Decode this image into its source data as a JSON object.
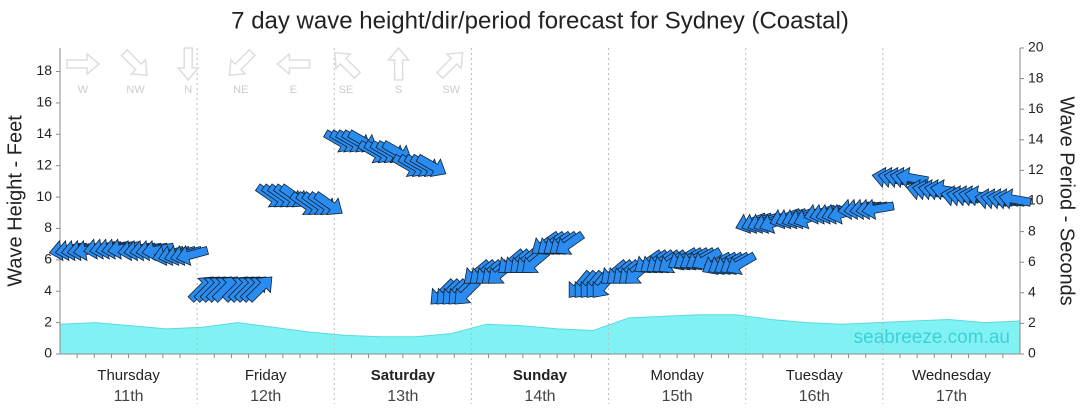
{
  "chart_data": {
    "type": "wave-forecast",
    "title": "7 day wave height/dir/period forecast for Sydney (Coastal)",
    "y_label": "Wave Height - Feet",
    "y2_label": "Wave Period - Seconds",
    "watermark": "seabreeze.com.au",
    "ylim": [
      0,
      19.5
    ],
    "yticks": [
      0,
      2,
      4,
      6,
      8,
      10,
      12,
      14,
      16,
      18
    ],
    "y2lim": [
      0,
      20
    ],
    "y2ticks": [
      0,
      2,
      4,
      6,
      8,
      10,
      12,
      14,
      16,
      18,
      20
    ],
    "days": [
      {
        "name": "Thursday",
        "date": "11th",
        "bold": false
      },
      {
        "name": "Friday",
        "date": "12th",
        "bold": false
      },
      {
        "name": "Saturday",
        "date": "13th",
        "bold": true
      },
      {
        "name": "Sunday",
        "date": "14th",
        "bold": true
      },
      {
        "name": "Monday",
        "date": "15th",
        "bold": false
      },
      {
        "name": "Tuesday",
        "date": "16th",
        "bold": false
      },
      {
        "name": "Wednesday",
        "date": "17th",
        "bold": false
      }
    ],
    "compass_legend": [
      "W",
      "NW",
      "N",
      "NE",
      "E",
      "SE",
      "S",
      "SW"
    ],
    "height": {
      "color": "#80f2f4",
      "values": [
        1.9,
        2.0,
        1.8,
        1.6,
        1.7,
        2.0,
        1.7,
        1.4,
        1.2,
        1.1,
        1.1,
        1.3,
        1.9,
        1.8,
        1.6,
        1.5,
        2.3,
        2.4,
        2.5,
        2.5,
        2.2,
        2.0,
        1.9,
        2.0,
        2.1,
        2.2,
        2.0,
        2.1
      ]
    },
    "period": {
      "axis": "y2",
      "color": "#2a8cf0",
      "values": [
        6.8,
        6.9,
        6.8,
        6.5,
        4.3,
        4.3,
        10.3,
        9.8,
        13.9,
        13.2,
        12.3,
        4.0,
        5.3,
        6.0,
        7.2,
        4.5,
        5.3,
        6.0,
        6.2,
        5.9,
        8.6,
        8.9,
        9.2,
        9.5,
        11.5,
        10.7,
        10.3,
        10.1
      ],
      "directions": [
        80,
        80,
        80,
        75,
        225,
        225,
        305,
        305,
        300,
        300,
        300,
        45,
        50,
        50,
        55,
        40,
        50,
        55,
        60,
        60,
        70,
        70,
        75,
        80,
        100,
        100,
        100,
        100
      ]
    }
  }
}
